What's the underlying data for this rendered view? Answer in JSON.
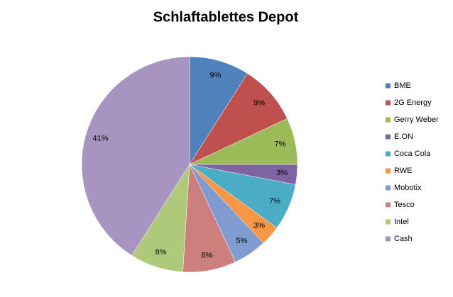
{
  "chart_data": {
    "type": "pie",
    "title": "Schlaftablettes Depot",
    "categories": [
      "BME",
      "2G Energy",
      "Gerry Weber",
      "E.ON",
      "Coca Cola",
      "RWE",
      "Mobotix",
      "Tesco",
      "Intel",
      "Cash"
    ],
    "values": [
      9,
      9,
      7,
      3,
      7,
      3,
      5,
      8,
      8,
      41
    ],
    "value_labels": [
      "9%",
      "9%",
      "7%",
      "3%",
      "7%",
      "3%",
      "5%",
      "8%",
      "8%",
      "41%"
    ],
    "colors": [
      "#4f81bd",
      "#c0504d",
      "#9bbb59",
      "#8064a2",
      "#4bacc6",
      "#f79646",
      "#7f9bcf",
      "#cd7f7e",
      "#afc97a",
      "#a794c0"
    ],
    "legend": "right"
  }
}
